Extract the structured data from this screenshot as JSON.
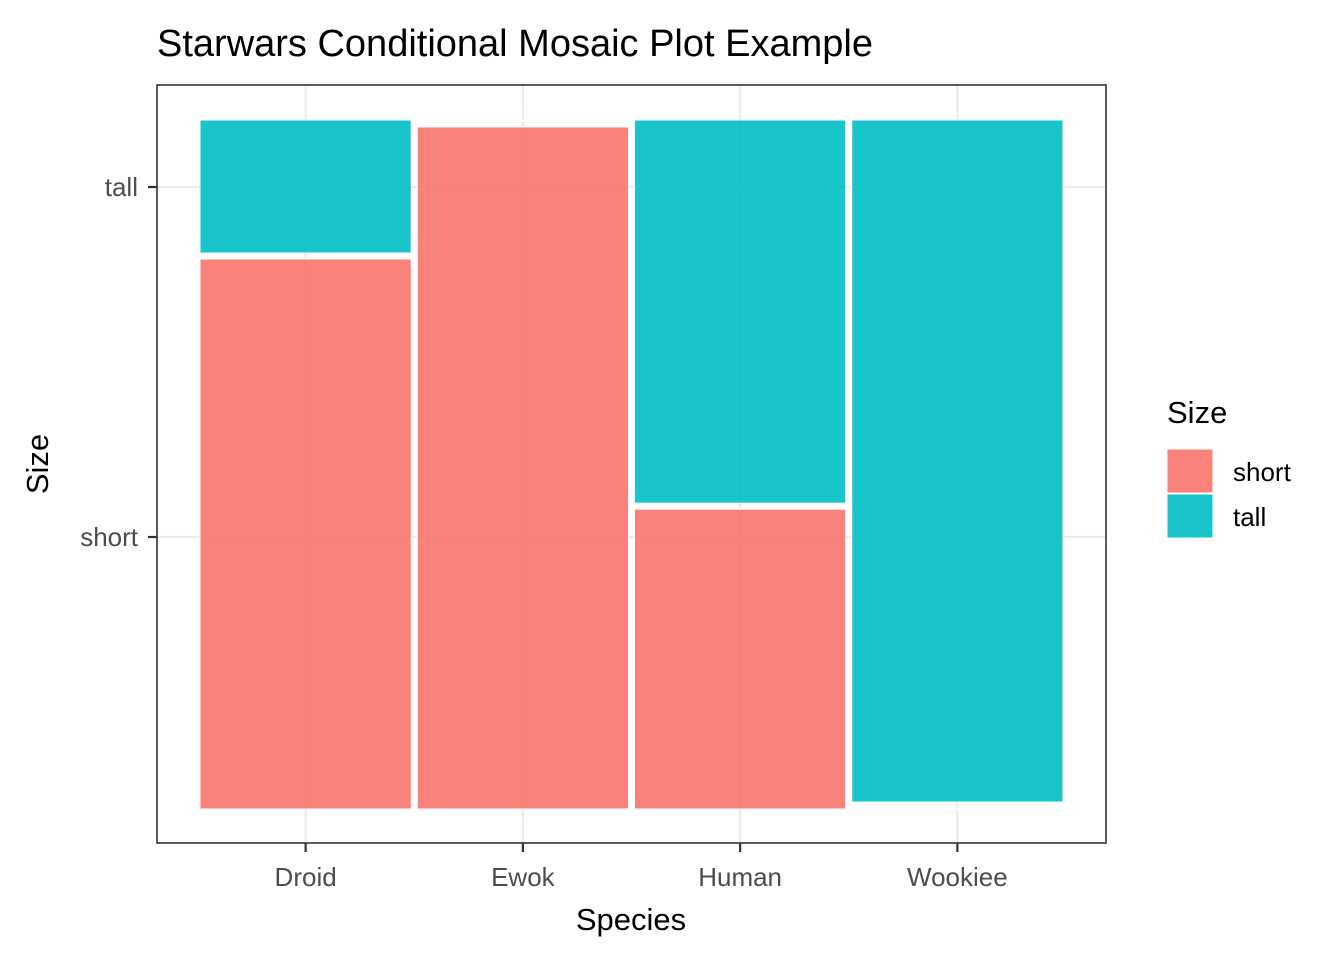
{
  "chart_data": {
    "type": "mosaic",
    "title": "Starwars Conditional Mosaic Plot Example",
    "xlabel": "Species",
    "ylabel": "Size",
    "categories": [
      "Droid",
      "Ewok",
      "Human",
      "Wookiee"
    ],
    "y_ticks": [
      "short",
      "tall"
    ],
    "series": [
      {
        "name": "short",
        "color": "#F8766D",
        "values": [
          0.8,
          0.99,
          0.44,
          0.01
        ]
      },
      {
        "name": "tall",
        "color": "#00BFC4",
        "values": [
          0.2,
          0.01,
          0.56,
          0.99
        ]
      }
    ],
    "column_widths": [
      0.25,
      0.25,
      0.25,
      0.25
    ],
    "legend": {
      "title": "Size",
      "position": "right",
      "items": [
        "short",
        "tall"
      ]
    },
    "grid": true,
    "theme": "bw"
  }
}
